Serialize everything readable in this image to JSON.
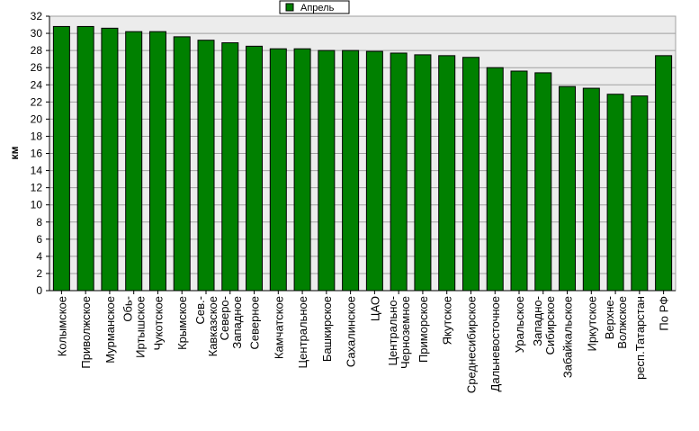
{
  "chart_data": {
    "type": "bar",
    "ylabel": "км",
    "ylim": [
      0,
      32
    ],
    "ytick_step": 2,
    "grid": true,
    "legend_position": "top-center",
    "series": [
      {
        "name": "Апрель",
        "color": "#008000",
        "values": [
          30.8,
          30.8,
          30.6,
          30.2,
          30.2,
          29.6,
          29.2,
          28.9,
          28.5,
          28.2,
          28.2,
          28.0,
          28.0,
          27.9,
          27.7,
          27.5,
          27.4,
          27.2,
          26.0,
          25.6,
          25.4,
          23.8,
          23.6,
          22.9,
          22.7,
          27.4
        ]
      }
    ],
    "categories": [
      [
        "Колымское"
      ],
      [
        "Приволжское"
      ],
      [
        "Мурманское"
      ],
      [
        "Обь-",
        "Иртышское"
      ],
      [
        "Чукотское"
      ],
      [
        "Крымское"
      ],
      [
        "Сев.-",
        "Кавказское"
      ],
      [
        "Северо-",
        "Западное"
      ],
      [
        "Северное"
      ],
      [
        "Камчатское"
      ],
      [
        "Центральное"
      ],
      [
        "Башкирское"
      ],
      [
        "Сахалинское"
      ],
      [
        "ЦАО"
      ],
      [
        "Центрально-",
        "Черноземное"
      ],
      [
        "Приморское"
      ],
      [
        "Якутское"
      ],
      [
        "Среднесибирское"
      ],
      [
        "Дальневосточное"
      ],
      [
        "Уральское"
      ],
      [
        "Западно-",
        "Сибирское"
      ],
      [
        "Забайкальское"
      ],
      [
        "Иркутское"
      ],
      [
        "Верхне-",
        "Волжское"
      ],
      [
        "респ.Татарстан"
      ],
      [
        "По РФ"
      ]
    ]
  }
}
